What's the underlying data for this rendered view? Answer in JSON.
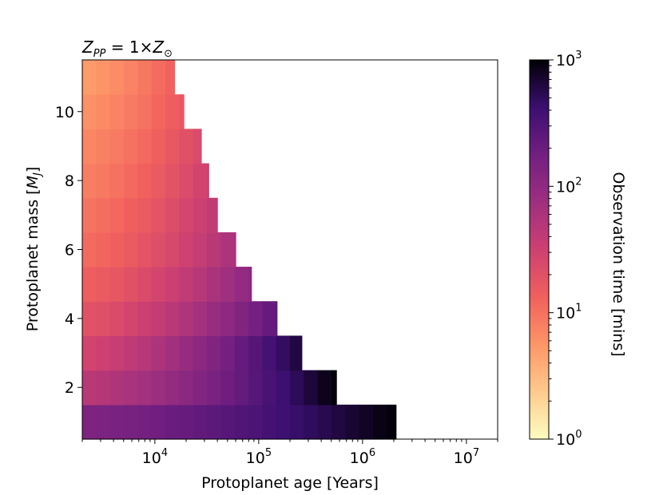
{
  "chart_data": {
    "type": "heatmap",
    "title": "Z_PP = 1×Z⊙",
    "title_parts": {
      "z": "Z",
      "sub": "PP",
      "eq": " = 1×",
      "z2": "Z",
      "sun": "⊙"
    },
    "xlabel": "Protoplanet age [Years]",
    "ylabel_parts": {
      "pre": "Protoplanet mass [",
      "m": "M",
      "sub": "J",
      "post": "]"
    },
    "x_scale": "log",
    "xlim": [
      2000,
      20000000
    ],
    "ylim": [
      0.5,
      11.5
    ],
    "x_ticks": [
      {
        "value": 10000,
        "base": "10",
        "exp": "4"
      },
      {
        "value": 100000,
        "base": "10",
        "exp": "5"
      },
      {
        "value": 1000000,
        "base": "10",
        "exp": "6"
      },
      {
        "value": 10000000,
        "base": "10",
        "exp": "7"
      }
    ],
    "y_ticks": [
      2,
      4,
      6,
      8,
      10
    ],
    "y_tick_labels": [
      "2",
      "4",
      "6",
      "8",
      "10"
    ],
    "colorbar": {
      "label": "Observation time [mins]",
      "scale": "log",
      "range": [
        1,
        1000
      ],
      "ticks": [
        {
          "value": 1,
          "base": "10",
          "exp": "0"
        },
        {
          "value": 10,
          "base": "10",
          "exp": "1"
        },
        {
          "value": 100,
          "base": "10",
          "exp": "2"
        },
        {
          "value": 1000,
          "base": "10",
          "exp": "3"
        }
      ],
      "colormap": "magma_r"
    },
    "mass_rows": [
      {
        "mass": 1,
        "max_age": 2100000,
        "t_start": 140,
        "t_end": 1000
      },
      {
        "mass": 2,
        "max_age": 560000,
        "t_start": 45,
        "t_end": 1000
      },
      {
        "mass": 3,
        "max_age": 260000,
        "t_start": 28,
        "t_end": 700
      },
      {
        "mass": 4,
        "max_age": 150000,
        "t_start": 19,
        "t_end": 250
      },
      {
        "mass": 5,
        "max_age": 85000,
        "t_start": 14,
        "t_end": 110
      },
      {
        "mass": 6,
        "max_age": 60000,
        "t_start": 11,
        "t_end": 65
      },
      {
        "mass": 7,
        "max_age": 40000,
        "t_start": 9.5,
        "t_end": 42
      },
      {
        "mass": 8,
        "max_age": 33000,
        "t_start": 8,
        "t_end": 32
      },
      {
        "mass": 9,
        "max_age": 28000,
        "t_start": 7,
        "t_end": 25
      },
      {
        "mass": 10,
        "max_age": 19000,
        "t_start": 6,
        "t_end": 17
      },
      {
        "mass": 11,
        "max_age": 15500,
        "t_start": 5,
        "t_end": 14
      }
    ]
  }
}
